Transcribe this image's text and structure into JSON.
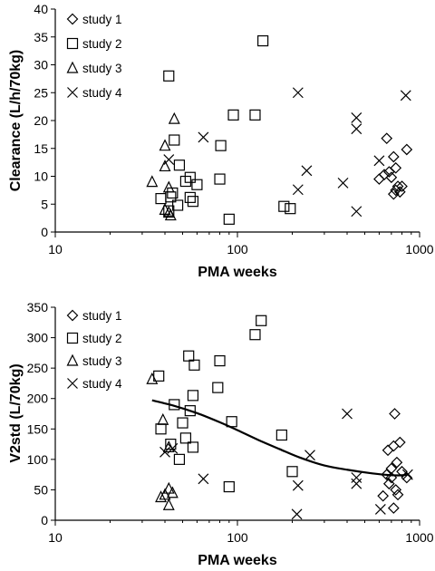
{
  "chart_data": [
    {
      "type": "scatter",
      "xlabel": "PMA weeks",
      "ylabel": "Clearance  (L/h/70kg)",
      "x_scale": "log",
      "xlim": [
        10,
        1000
      ],
      "ylim": [
        0,
        40
      ],
      "x_ticks": [
        10,
        100,
        1000
      ],
      "x_tick_labels": [
        "10",
        "100",
        "1000"
      ],
      "y_ticks": [
        0,
        5,
        10,
        15,
        20,
        25,
        30,
        35,
        40
      ],
      "y_tick_labels": [
        "0",
        "5",
        "10",
        "15",
        "20",
        "25",
        "30",
        "35",
        "40"
      ],
      "grid": false,
      "legend": "top-left",
      "series": [
        {
          "name": "study 1",
          "marker": "diamond",
          "points": [
            [
              660,
              16.8
            ],
            [
              720,
              13.5
            ],
            [
              850,
              14.8
            ],
            [
              600,
              9.5
            ],
            [
              640,
              10.3
            ],
            [
              680,
              10.8
            ],
            [
              700,
              9.8
            ],
            [
              740,
              11.5
            ],
            [
              760,
              8.2
            ],
            [
              720,
              6.8
            ],
            [
              780,
              7.2
            ],
            [
              800,
              8.2
            ],
            [
              740,
              7.5
            ]
          ]
        },
        {
          "name": "study 2",
          "marker": "square",
          "points": [
            [
              42,
              28
            ],
            [
              138,
              34.3
            ],
            [
              95,
              21
            ],
            [
              125,
              21
            ],
            [
              45,
              16.5
            ],
            [
              81,
              15.5
            ],
            [
              48,
              12
            ],
            [
              55,
              9.8
            ],
            [
              38,
              6
            ],
            [
              44,
              7
            ],
            [
              47,
              4.8
            ],
            [
              55,
              6.2
            ],
            [
              57,
              5.5
            ],
            [
              60,
              8.5
            ],
            [
              80,
              9.5
            ],
            [
              90,
              2.3
            ],
            [
              180,
              4.6
            ],
            [
              195,
              4.2
            ],
            [
              52,
              9.1
            ],
            [
              43,
              6.3
            ],
            [
              42,
              3.8
            ]
          ]
        },
        {
          "name": "study 3",
          "marker": "triangle",
          "points": [
            [
              45,
              20.3
            ],
            [
              40,
              15.5
            ],
            [
              40,
              11.8
            ],
            [
              34,
              9
            ],
            [
              42,
              8
            ],
            [
              40,
              4
            ],
            [
              42,
              3.5
            ],
            [
              43,
              3
            ]
          ]
        },
        {
          "name": "study 4",
          "marker": "x",
          "points": [
            [
              42,
              13
            ],
            [
              65,
              17
            ],
            [
              215,
              25
            ],
            [
              240,
              11
            ],
            [
              215,
              7.6
            ],
            [
              380,
              8.8
            ],
            [
              450,
              20.5
            ],
            [
              450,
              18.5
            ],
            [
              450,
              3.7
            ],
            [
              600,
              12.8
            ],
            [
              840,
              24.5
            ]
          ]
        }
      ]
    },
    {
      "type": "scatter",
      "xlabel": "PMA weeks",
      "ylabel": "V2std  (L/70kg)",
      "x_scale": "log",
      "xlim": [
        10,
        1000
      ],
      "ylim": [
        0,
        350
      ],
      "x_ticks": [
        10,
        100,
        1000
      ],
      "x_tick_labels": [
        "10",
        "100",
        "1000"
      ],
      "y_ticks": [
        0,
        50,
        100,
        150,
        200,
        250,
        300,
        350
      ],
      "y_tick_labels": [
        "0",
        "50",
        "100",
        "150",
        "200",
        "250",
        "300",
        "350"
      ],
      "grid": false,
      "legend": "top-left",
      "fit_line": [
        [
          34,
          197
        ],
        [
          45,
          188
        ],
        [
          60,
          176
        ],
        [
          80,
          161
        ],
        [
          100,
          148
        ],
        [
          130,
          132
        ],
        [
          170,
          117
        ],
        [
          220,
          103
        ],
        [
          300,
          90
        ],
        [
          400,
          83
        ],
        [
          550,
          77
        ],
        [
          700,
          74
        ],
        [
          800,
          74
        ],
        [
          850,
          75
        ]
      ],
      "series": [
        {
          "name": "study 1",
          "marker": "diamond",
          "points": [
            [
              730,
              175
            ],
            [
              780,
              128
            ],
            [
              720,
              122
            ],
            [
              670,
              115
            ],
            [
              750,
              95
            ],
            [
              800,
              80
            ],
            [
              700,
              85
            ],
            [
              660,
              75
            ],
            [
              700,
              70
            ],
            [
              850,
              70
            ],
            [
              680,
              60
            ],
            [
              740,
              50
            ],
            [
              760,
              42
            ],
            [
              630,
              40
            ],
            [
              720,
              20
            ]
          ]
        },
        {
          "name": "study 2",
          "marker": "square",
          "points": [
            [
              37,
              237
            ],
            [
              45,
              190
            ],
            [
              54,
              270
            ],
            [
              57,
              205
            ],
            [
              58,
              255
            ],
            [
              55,
              180
            ],
            [
              50,
              160
            ],
            [
              52,
              135
            ],
            [
              57,
              120
            ],
            [
              43,
              125
            ],
            [
              48,
              100
            ],
            [
              38,
              150
            ],
            [
              80,
              262
            ],
            [
              78,
              218
            ],
            [
              93,
              162
            ],
            [
              125,
              305
            ],
            [
              135,
              328
            ],
            [
              175,
              140
            ],
            [
              200,
              80
            ],
            [
              90,
              55
            ]
          ]
        },
        {
          "name": "study 3",
          "marker": "triangle",
          "points": [
            [
              34,
              232
            ],
            [
              39,
              165
            ],
            [
              42,
              120
            ],
            [
              38,
              38
            ],
            [
              40,
              42
            ],
            [
              42,
              52
            ],
            [
              44,
              45
            ],
            [
              42,
              25
            ]
          ]
        },
        {
          "name": "study 4",
          "marker": "x",
          "points": [
            [
              40,
              112
            ],
            [
              44,
              118
            ],
            [
              65,
              68
            ],
            [
              215,
              57
            ],
            [
              212,
              10
            ],
            [
              250,
              107
            ],
            [
              400,
              175
            ],
            [
              450,
              70
            ],
            [
              450,
              60
            ],
            [
              610,
              18
            ],
            [
              860,
              75
            ]
          ]
        }
      ]
    }
  ]
}
